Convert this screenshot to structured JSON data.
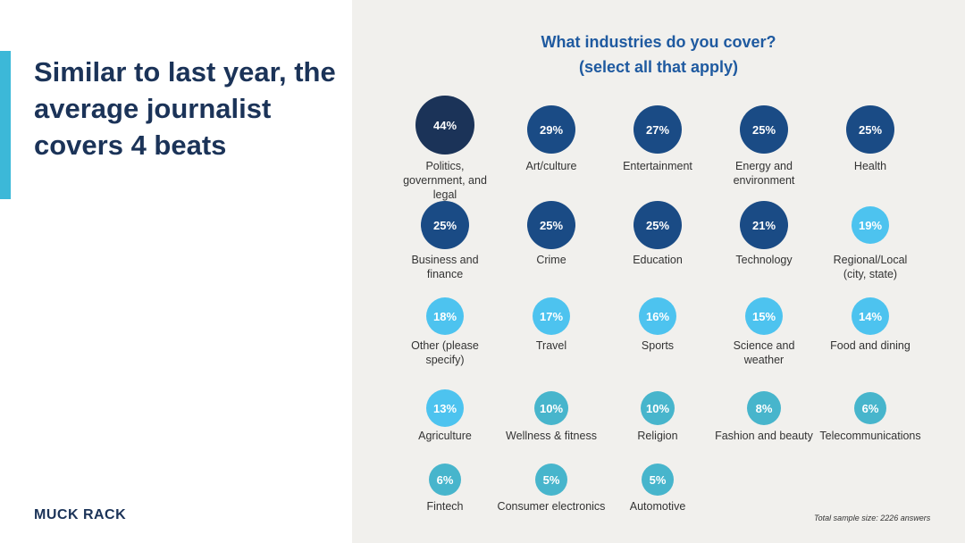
{
  "headline": "Similar to last year, the average journalist covers 4 beats",
  "logo": "MUCK RACK",
  "chart_data": {
    "type": "bubble",
    "title_line1": "What industries do you cover?",
    "title_line2": "(select all that apply)",
    "unit": "%",
    "items": [
      {
        "label": "Politics, government, and legal",
        "value": 44
      },
      {
        "label": "Art/culture",
        "value": 29
      },
      {
        "label": "Entertainment",
        "value": 27
      },
      {
        "label": "Energy and environment",
        "value": 25
      },
      {
        "label": "Health",
        "value": 25
      },
      {
        "label": "Business and finance",
        "value": 25
      },
      {
        "label": "Crime",
        "value": 25
      },
      {
        "label": "Education",
        "value": 25
      },
      {
        "label": "Technology",
        "value": 21
      },
      {
        "label": "Regional/Local (city, state)",
        "value": 19
      },
      {
        "label": "Other (please specify)",
        "value": 18
      },
      {
        "label": "Travel",
        "value": 17
      },
      {
        "label": "Sports",
        "value": 16
      },
      {
        "label": "Science and weather",
        "value": 15
      },
      {
        "label": "Food and dining",
        "value": 14
      },
      {
        "label": "Agriculture",
        "value": 13
      },
      {
        "label": "Wellness & fitness",
        "value": 10
      },
      {
        "label": "Religion",
        "value": 10
      },
      {
        "label": "Fashion and beauty",
        "value": 8
      },
      {
        "label": "Telecommunications",
        "value": 6
      },
      {
        "label": "Fintech",
        "value": 6
      },
      {
        "label": "Consumer electronics",
        "value": 5
      },
      {
        "label": "Automotive",
        "value": 5
      }
    ],
    "note": "Total sample size: 2226 answers",
    "colors": {
      "top": "#1b3358",
      "high": "#1a4b85",
      "mid": "#4dc3ef",
      "low": "#47b5cc"
    }
  }
}
